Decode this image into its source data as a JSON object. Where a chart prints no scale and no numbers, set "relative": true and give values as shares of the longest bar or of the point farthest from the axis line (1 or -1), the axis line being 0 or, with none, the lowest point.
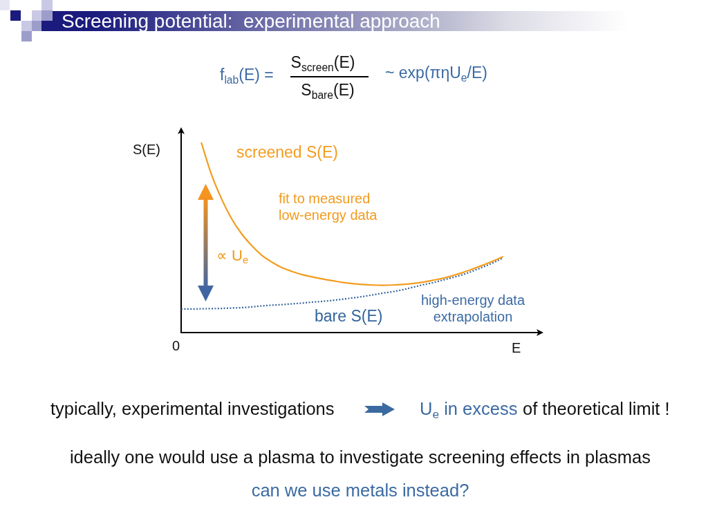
{
  "chart_data": {
    "type": "line",
    "title": "Screening potential:  experimental approach",
    "xlabel": "E",
    "ylabel": "S(E)",
    "relative": true,
    "categories": [
      null,
      null,
      null,
      null,
      null,
      null,
      null,
      null,
      null,
      null,
      null,
      null,
      null,
      null,
      null,
      null,
      null,
      null,
      null,
      null,
      null,
      null,
      null,
      null,
      null,
      null,
      null,
      null,
      null,
      null,
      null,
      null,
      null,
      null,
      null,
      null,
      null
    ],
    "series": [
      {
        "name": "screened S(E)",
        "color": "#f39c1e",
        "line_style": "solid",
        "values": [
          null,
          null,
          1,
          0.833,
          0.705,
          0.6,
          0.52,
          0.458,
          0.407,
          0.371,
          0.342,
          0.322,
          0.305,
          0.293,
          0.282,
          0.273,
          0.264,
          0.258,
          0.253,
          0.25,
          0.249,
          0.25,
          0.253,
          0.258,
          0.265,
          0.275,
          0.285,
          0.3,
          0.316,
          0.335,
          0.355,
          0.376,
          0.4,
          null,
          null,
          null,
          null
        ]
      },
      {
        "name": "bare S(E)",
        "color": "#33649e",
        "line_style": "dotted",
        "values": [
          0.124,
          0.124,
          0.125,
          0.126,
          0.127,
          0.129,
          0.131,
          0.135,
          0.14,
          0.144,
          0.147,
          0.151,
          0.155,
          0.16,
          0.164,
          0.169,
          0.175,
          0.182,
          0.189,
          0.198,
          0.207,
          0.215,
          0.225,
          0.238,
          0.251,
          0.262,
          0.276,
          0.29,
          0.305,
          0.324,
          0.345,
          0.367,
          0.393,
          null,
          null,
          null,
          null
        ]
      }
    ],
    "marker": "none",
    "grid": false,
    "legend": false,
    "tick_labels": false,
    "annotations": [
      "f$_{lab}$(E) =",
      "S$_{screen}$(E)",
      "S$_{bare}$(E)",
      "~ exp(πηU$_{e}$/E)",
      "0",
      "fit to measured low-energy data",
      "∝ U$_{e}$",
      "high-energy data extrapolation",
      "typically, experimental investigations",
      "U$_{e}$ in excess",
      "of theoretical limit !",
      "ideally one would use a plasma to investigate screening effects in plasmas",
      "can we use metals instead?"
    ]
  }
}
